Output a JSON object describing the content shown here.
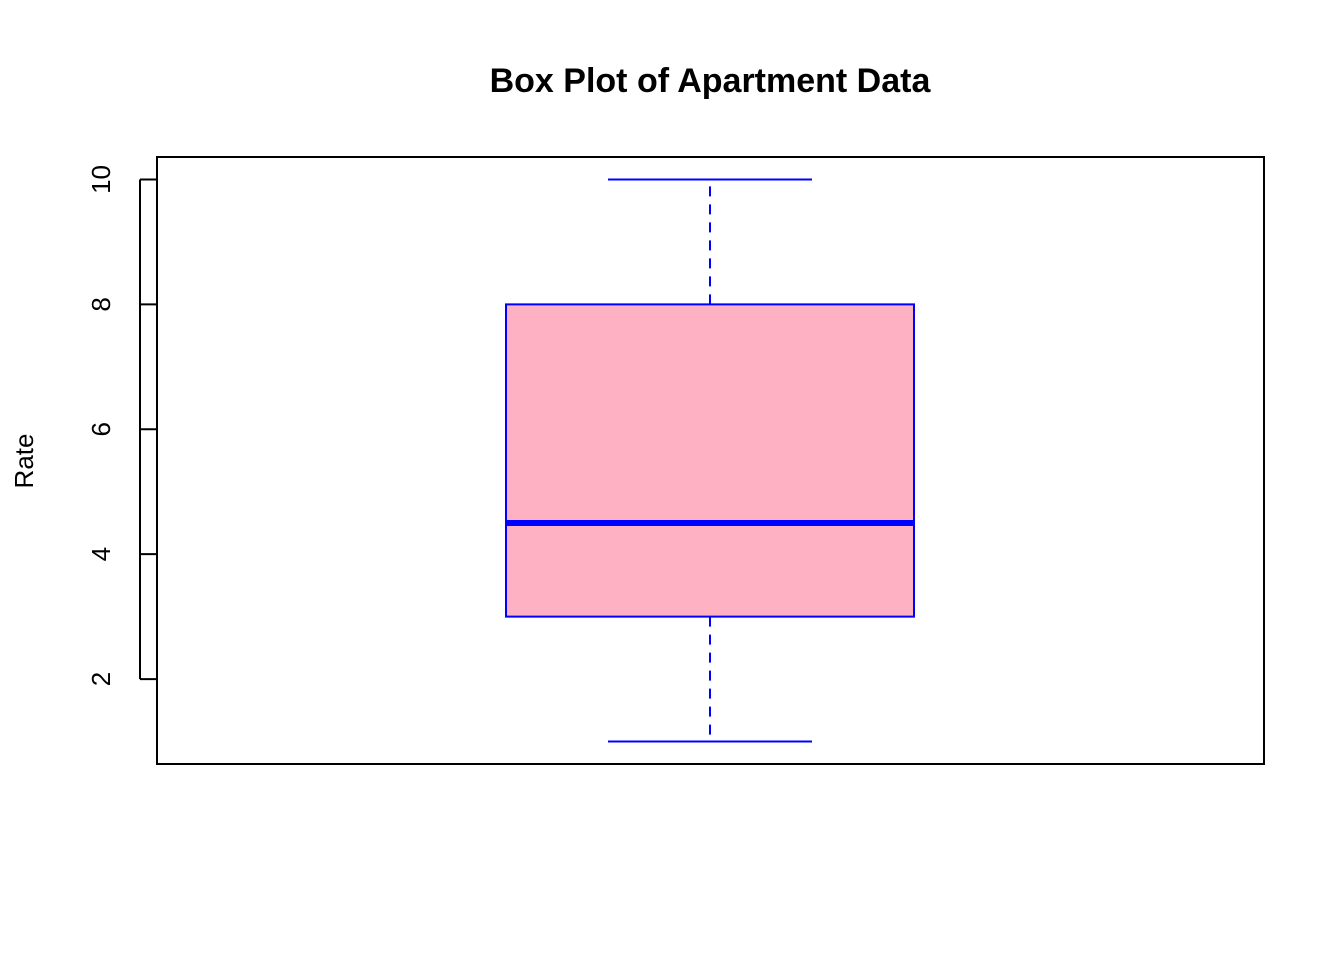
{
  "chart_data": {
    "type": "box",
    "title": "Box Plot of Apartment Data",
    "xlabel": "",
    "ylabel": "Rate",
    "ylim": [
      0.64,
      10.36
    ],
    "yticks": [
      2,
      4,
      6,
      8,
      10
    ],
    "grid": false,
    "box": {
      "whisker_low": 1,
      "q1": 3,
      "median": 4.5,
      "q3": 8,
      "whisker_high": 10
    },
    "colors": {
      "box_fill": "#fdb1c2",
      "box_border": "#0000ff",
      "median_line": "#0000ff",
      "whisker": "#0000ff",
      "axis": "#000000"
    }
  }
}
